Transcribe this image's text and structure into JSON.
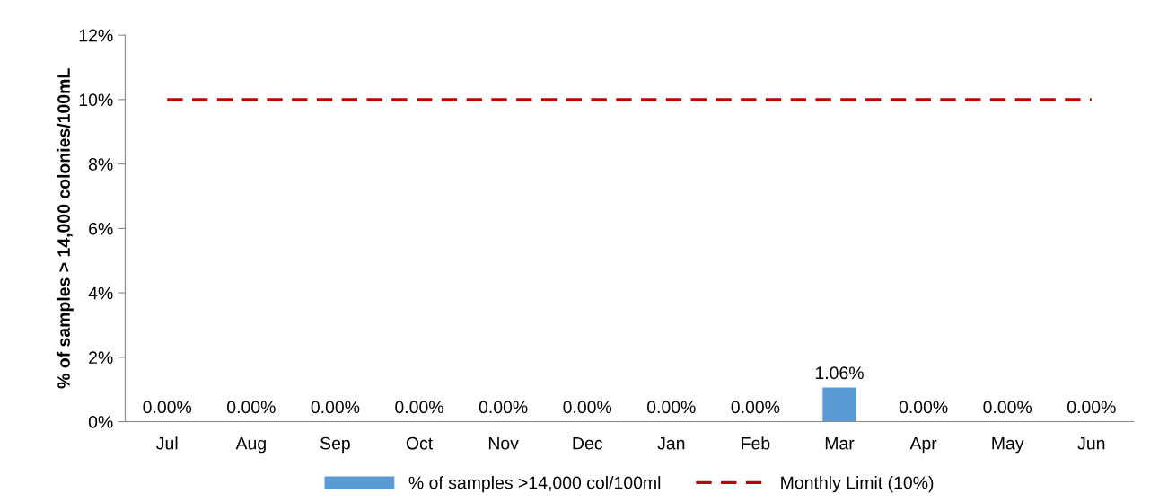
{
  "chart_data": {
    "type": "bar",
    "ylabel": "% of samples > 14,000 colonies/100mL",
    "categories": [
      "Jul",
      "Aug",
      "Sep",
      "Oct",
      "Nov",
      "Dec",
      "Jan",
      "Feb",
      "Mar",
      "Apr",
      "May",
      "Jun"
    ],
    "series": [
      {
        "name": "% of samples >14,000 col/100ml",
        "color": "#5b9bd5",
        "values": [
          0,
          0,
          0,
          0,
          0,
          0,
          0,
          0,
          1.06,
          0,
          0,
          0
        ],
        "value_labels": [
          "0.00%",
          "0.00%",
          "0.00%",
          "0.00%",
          "0.00%",
          "0.00%",
          "0.00%",
          "0.00%",
          "1.06%",
          "0.00%",
          "0.00%",
          "0.00%"
        ]
      },
      {
        "name": "Monthly Limit (10%)",
        "type": "line",
        "color": "#c00000",
        "line_style": "dashed",
        "values": [
          10,
          10,
          10,
          10,
          10,
          10,
          10,
          10,
          10,
          10,
          10,
          10
        ]
      }
    ],
    "ylim": [
      0,
      12
    ],
    "yticks": [
      {
        "value": 0,
        "label": "0%"
      },
      {
        "value": 2,
        "label": "2%"
      },
      {
        "value": 4,
        "label": "4%"
      },
      {
        "value": 6,
        "label": "6%"
      },
      {
        "value": 8,
        "label": "8%"
      },
      {
        "value": 10,
        "label": "10%"
      },
      {
        "value": 12,
        "label": "12%"
      }
    ],
    "grid": false,
    "legend": "bottom"
  }
}
